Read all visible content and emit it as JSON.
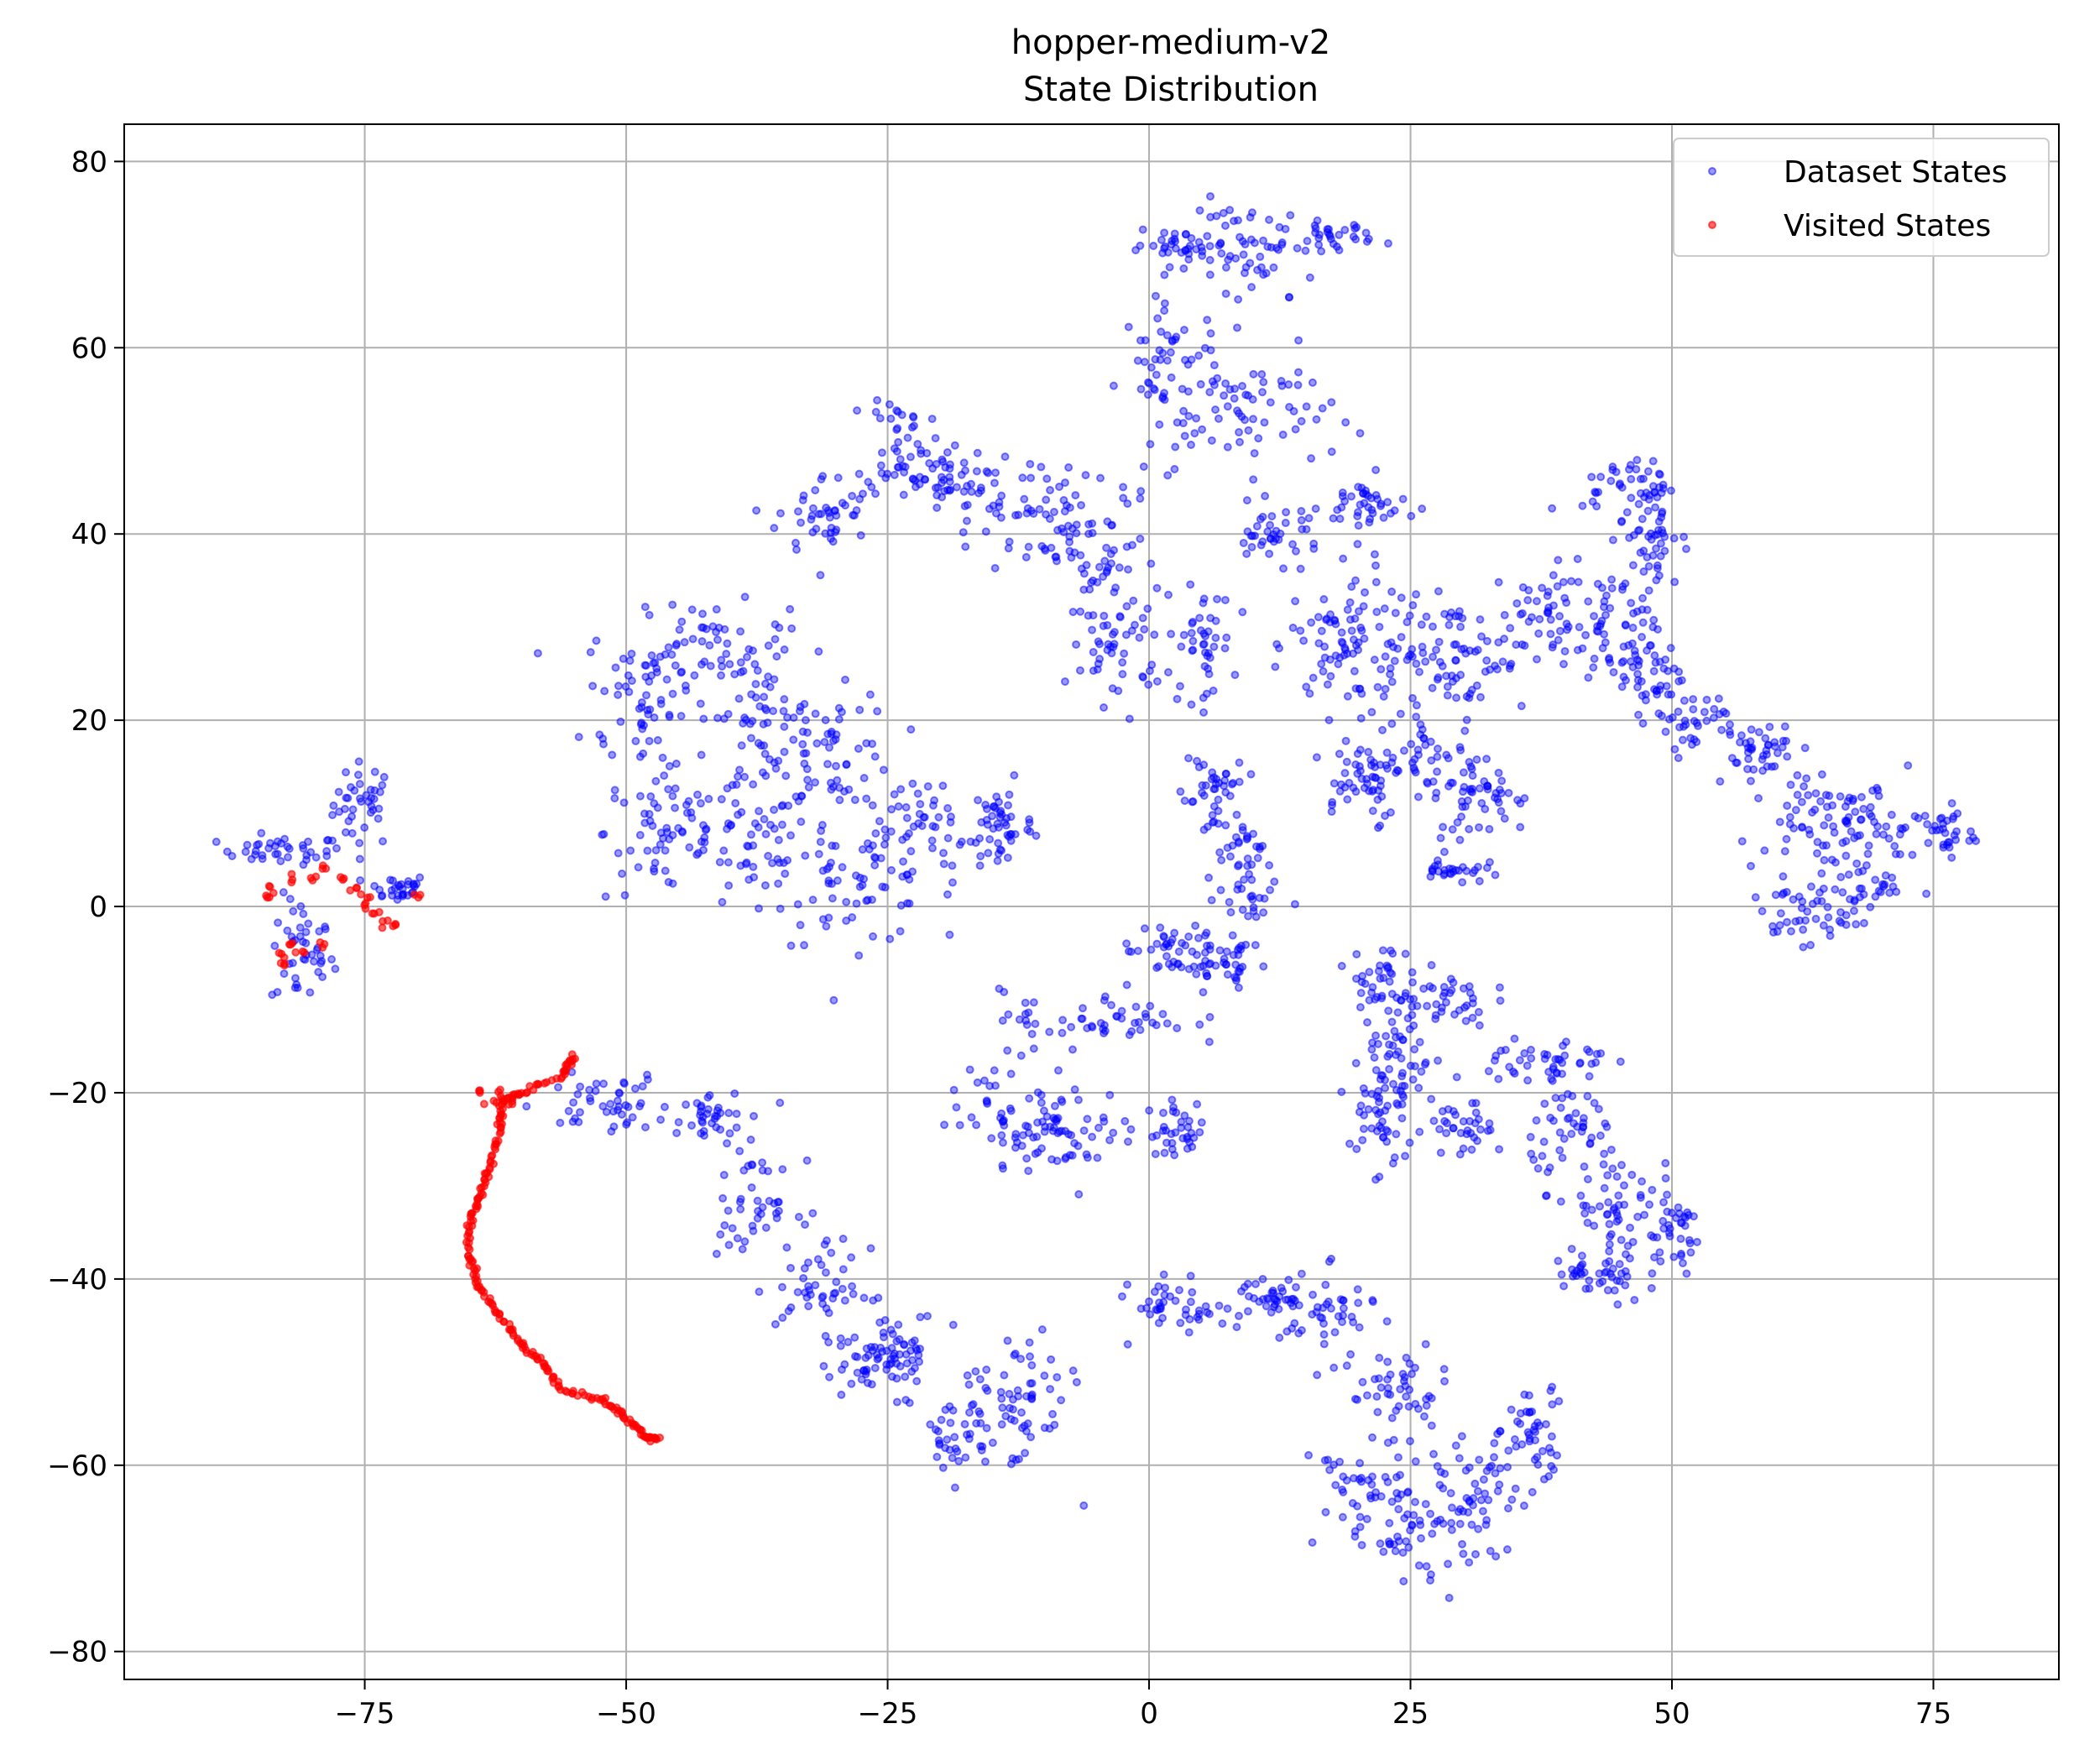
{
  "chart_data": {
    "type": "scatter",
    "title": "hopper-medium-v2",
    "subtitle": "State Distribution",
    "xlabel": "",
    "ylabel": "",
    "xlim": [
      -98,
      87
    ],
    "ylim": [
      -83,
      84
    ],
    "xticks": [
      -75,
      -50,
      -25,
      0,
      25,
      50,
      75
    ],
    "xtick_labels": [
      "−75",
      "−50",
      "−25",
      "0",
      "25",
      "50",
      "75"
    ],
    "yticks": [
      -80,
      -60,
      -40,
      -20,
      0,
      20,
      40,
      60,
      80
    ],
    "ytick_labels": [
      "−80",
      "−60",
      "−40",
      "−20",
      "0",
      "20",
      "40",
      "60",
      "80"
    ],
    "grid": true,
    "legend_position": "top-right",
    "series": [
      {
        "name": "Dataset States",
        "color": "#0000ff",
        "opacity": 0.4,
        "clusters": [
          [
            -75,
            11,
            2,
            3
          ],
          [
            -83,
            6,
            4,
            1
          ],
          [
            -81,
            -5,
            2,
            4
          ],
          [
            -72,
            2,
            2,
            1
          ],
          [
            -48,
            22,
            4,
            6
          ],
          [
            -42,
            28,
            5,
            3
          ],
          [
            -37,
            21,
            3,
            4
          ],
          [
            -46,
            8,
            4,
            5
          ],
          [
            -38,
            6,
            4,
            5
          ],
          [
            -30,
            17,
            4,
            4
          ],
          [
            -28,
            2,
            5,
            4
          ],
          [
            -22,
            8,
            6,
            4
          ],
          [
            -14,
            9,
            2,
            3
          ],
          [
            -31,
            42,
            3,
            3
          ],
          [
            -24,
            50,
            2,
            4
          ],
          [
            -20,
            46,
            3,
            2
          ],
          [
            -13,
            43,
            5,
            4
          ],
          [
            -5,
            37,
            4,
            5
          ],
          [
            -3,
            28,
            3,
            4
          ],
          [
            5,
            28,
            2,
            4
          ],
          [
            3,
            71,
            3,
            1
          ],
          [
            10,
            70,
            4,
            4
          ],
          [
            17,
            72,
            3,
            1
          ],
          [
            2,
            57,
            3,
            6
          ],
          [
            10,
            53,
            5,
            4
          ],
          [
            12,
            40,
            3,
            2
          ],
          [
            18,
            28,
            3,
            5
          ],
          [
            21,
            43,
            3,
            2
          ],
          [
            23,
            28,
            4,
            5
          ],
          [
            30,
            27,
            4,
            4
          ],
          [
            37,
            31,
            4,
            4
          ],
          [
            44,
            29,
            3,
            4
          ],
          [
            48,
            40,
            2,
            5
          ],
          [
            46,
            45,
            3,
            2
          ],
          [
            48,
            25,
            2,
            3
          ],
          [
            20,
            14,
            3,
            3
          ],
          [
            27,
            15,
            4,
            4
          ],
          [
            32,
            12,
            3,
            3
          ],
          [
            29,
            4,
            2,
            1
          ],
          [
            52,
            20,
            3,
            2
          ],
          [
            58,
            17,
            3,
            2
          ],
          [
            63,
            10,
            3,
            3
          ],
          [
            69,
            9,
            3,
            3
          ],
          [
            76,
            8,
            2,
            2
          ],
          [
            62,
            -1,
            3,
            2
          ],
          [
            68,
            2,
            3,
            2
          ],
          [
            6,
            12,
            2,
            4
          ],
          [
            9,
            4,
            2,
            5
          ],
          [
            7,
            -6,
            3,
            2
          ],
          [
            2,
            -5,
            3,
            2
          ],
          [
            -5,
            -12,
            6,
            2
          ],
          [
            -13,
            -22,
            4,
            4
          ],
          [
            -7,
            -24,
            4,
            3
          ],
          [
            3,
            -24,
            2,
            2
          ],
          [
            22,
            -8,
            2,
            3
          ],
          [
            28,
            -10,
            3,
            2
          ],
          [
            22,
            -22,
            2,
            5
          ],
          [
            24,
            -16,
            2,
            4
          ],
          [
            30,
            -24,
            2,
            2
          ],
          [
            38,
            -17,
            4,
            2
          ],
          [
            41,
            -24,
            3,
            4
          ],
          [
            45,
            -34,
            3,
            4
          ],
          [
            50,
            -35,
            2,
            3
          ],
          [
            43,
            -40,
            3,
            2
          ],
          [
            -52,
            -21,
            4,
            2
          ],
          [
            -42,
            -22,
            3,
            2
          ],
          [
            -38,
            -32,
            3,
            3
          ],
          [
            -31,
            -41,
            3,
            3
          ],
          [
            -24,
            -48,
            3,
            3
          ],
          [
            -18,
            -57,
            3,
            3
          ],
          [
            -12,
            -53,
            3,
            5
          ],
          [
            -27,
            -49,
            3,
            2
          ],
          [
            3,
            -43,
            3,
            2
          ],
          [
            11,
            -42,
            3,
            2
          ],
          [
            17,
            -44,
            3,
            3
          ],
          [
            24,
            -52,
            3,
            3
          ],
          [
            20,
            -63,
            3,
            4
          ],
          [
            27,
            -67,
            4,
            4
          ],
          [
            32,
            -63,
            3,
            4
          ],
          [
            37,
            -56,
            2,
            3
          ]
        ]
      },
      {
        "name": "Visited States",
        "color": "#ff0000",
        "opacity": 0.6,
        "path": [
          [
            -55,
            -16
          ],
          [
            -56,
            -18
          ],
          [
            -60,
            -20
          ],
          [
            -62,
            -21
          ],
          [
            -62,
            -24
          ],
          [
            -63,
            -28
          ],
          [
            -64,
            -31
          ],
          [
            -65,
            -34
          ],
          [
            -65,
            -38
          ],
          [
            -64,
            -41
          ],
          [
            -62,
            -44
          ],
          [
            -60,
            -47
          ],
          [
            -58,
            -49
          ],
          [
            -56,
            -52
          ],
          [
            -52,
            -53
          ],
          [
            -50,
            -55
          ],
          [
            -48,
            -57
          ],
          [
            -47,
            -57
          ]
        ],
        "points": [
          [
            -84,
            2
          ],
          [
            -84,
            1
          ],
          [
            -82,
            3
          ],
          [
            -80,
            3
          ],
          [
            -79,
            4
          ],
          [
            -77,
            3
          ],
          [
            -76,
            2
          ],
          [
            -75,
            1
          ],
          [
            -75,
            0
          ],
          [
            -74,
            -1
          ],
          [
            -73,
            -2
          ],
          [
            -72,
            -2
          ],
          [
            -70,
            1
          ],
          [
            -83,
            -6
          ],
          [
            -83,
            -5
          ],
          [
            -82,
            -4
          ],
          [
            -81,
            -5
          ],
          [
            -79,
            -4
          ],
          [
            -64,
            -20
          ],
          [
            -63,
            -21
          ],
          [
            -62,
            -20
          ],
          [
            -61,
            -21
          ]
        ]
      }
    ]
  }
}
